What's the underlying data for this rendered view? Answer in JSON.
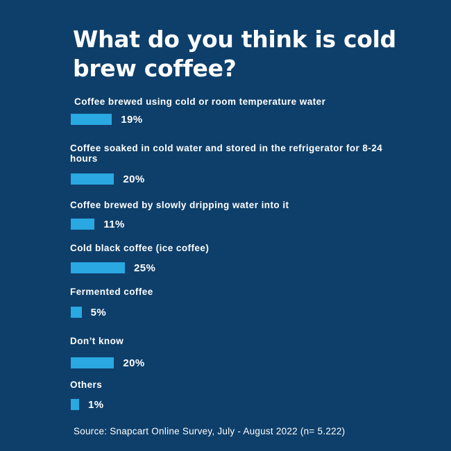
{
  "chart_data": {
    "type": "bar",
    "orientation": "horizontal",
    "title": "What do you think is cold brew coffee?",
    "categories": [
      "Coffee brewed using cold or room temperature water",
      "Coffee soaked in cold water and stored in the refrigerator for 8-24 hours",
      "Coffee brewed by slowly dripping water into it",
      "Cold black coffee (ice coffee)",
      "Fermented coffee",
      "Don’t know",
      "Others"
    ],
    "values": [
      19,
      20,
      11,
      25,
      5,
      20,
      1
    ],
    "value_labels": [
      "19%",
      "20%",
      "11%",
      "25%",
      "5%",
      "20%",
      "1%"
    ],
    "unit": "%",
    "bar_color": "#29a8e2",
    "background_color": "#0e3f6a",
    "text_color": "#ffffff"
  },
  "source": "Source: Snapcart Online Survey, July - August 2022 (n= 5.222)"
}
